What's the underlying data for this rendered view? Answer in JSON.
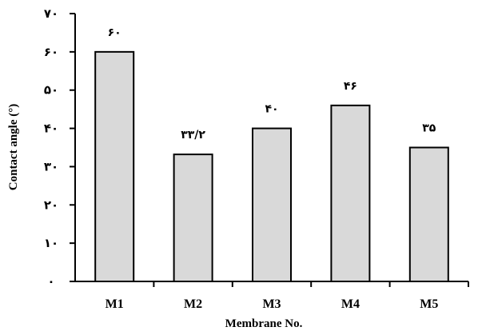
{
  "chart_data": {
    "type": "bar",
    "categories": [
      "M1",
      "M2",
      "M3",
      "M4",
      "M5"
    ],
    "values": [
      60,
      33.2,
      40,
      46,
      35
    ],
    "data_labels": [
      "۶۰",
      "۳۳/۲",
      "۴۰",
      "۴۶",
      "۳۵"
    ],
    "title": "",
    "xlabel": "Membrane No.",
    "ylabel": "Contact angle (°)",
    "ylim": [
      0,
      70
    ],
    "yticks": [
      0,
      10,
      20,
      30,
      40,
      50,
      60,
      70
    ],
    "ytick_labels": [
      "۰",
      "۱۰",
      "۲۰",
      "۳۰",
      "۴۰",
      "۵۰",
      "۶۰",
      "۷۰"
    ],
    "grid": false,
    "legend": "none",
    "bar_color": "#d9d9d9",
    "bar_edge_color": "#000000"
  }
}
